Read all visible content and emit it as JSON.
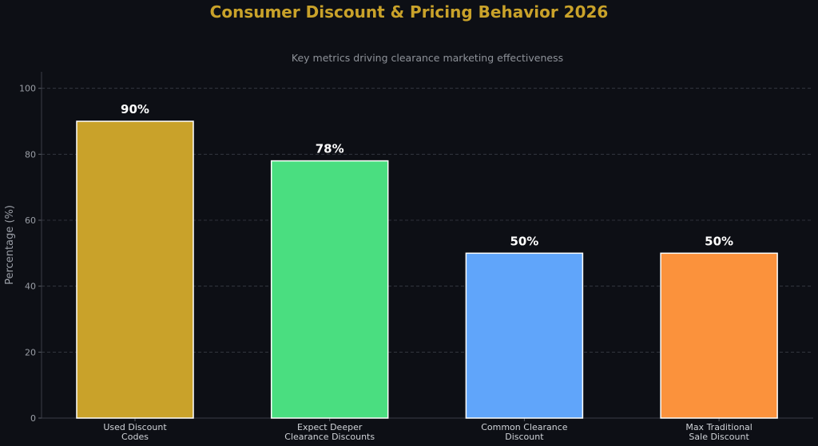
{
  "chart_data": {
    "type": "bar",
    "title": "Consumer Discount & Pricing Behavior 2026",
    "subtitle": "Key metrics driving clearance marketing effectiveness",
    "xlabel": "",
    "ylabel": "Percentage (%)",
    "ylim": [
      0,
      105
    ],
    "yticks": [
      0,
      20,
      40,
      60,
      80,
      100
    ],
    "grid": true,
    "categories": [
      [
        "Used Discount",
        "Codes"
      ],
      [
        "Expect Deeper",
        "Clearance Discounts"
      ],
      [
        "Common Clearance",
        "Discount"
      ],
      [
        "Max Traditional",
        "Sale Discount"
      ]
    ],
    "values": [
      90,
      78,
      50,
      50
    ],
    "data_labels": [
      "90%",
      "78%",
      "50%",
      "50%"
    ],
    "colors": [
      "#c9a22a",
      "#4ade80",
      "#60a5fa",
      "#fb923c"
    ]
  }
}
